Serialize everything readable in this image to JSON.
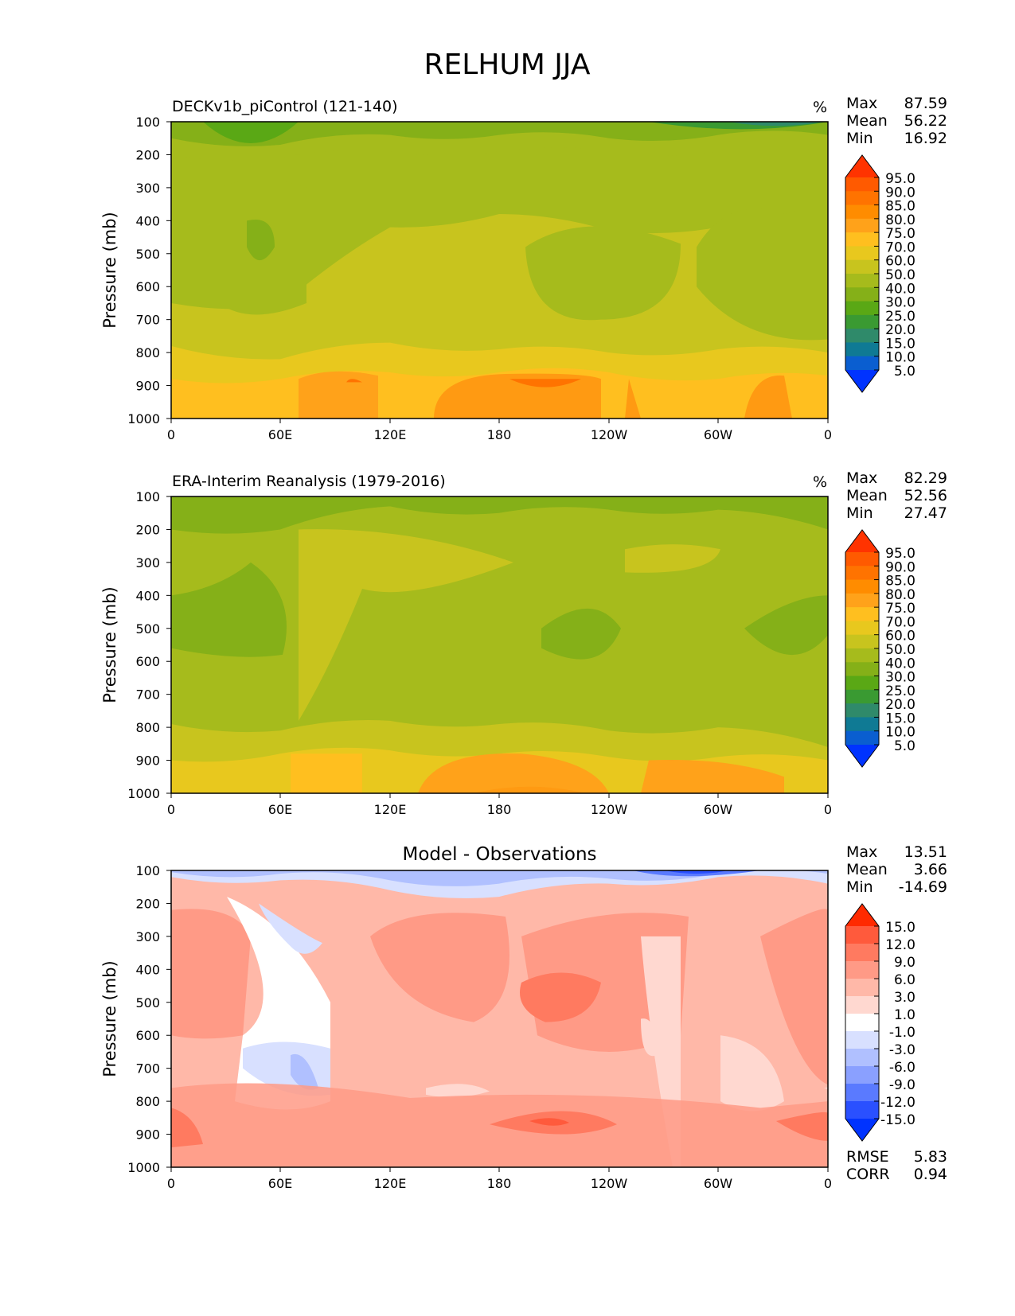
{
  "title": "RELHUM JJA",
  "common": {
    "ylabel": "Pressure (mb)",
    "y_ticks": [
      "100",
      "200",
      "300",
      "400",
      "500",
      "600",
      "700",
      "800",
      "900",
      "1000"
    ],
    "x_ticks": [
      "0",
      "60E",
      "120E",
      "180",
      "120W",
      "60W",
      "0"
    ]
  },
  "panels": [
    {
      "name": "model",
      "subtitle": "DECKv1b_piControl (121-140)",
      "units": "%",
      "stats": [
        {
          "label": "Max",
          "value": "87.59"
        },
        {
          "label": "Mean",
          "value": "56.22"
        },
        {
          "label": "Min",
          "value": "16.92"
        }
      ],
      "colorbar": {
        "labels": [
          "95.0",
          "90.0",
          "85.0",
          "80.0",
          "75.0",
          "70.0",
          "60.0",
          "50.0",
          "40.0",
          "30.0",
          "25.0",
          "20.0",
          "15.0",
          "10.0",
          "5.0"
        ],
        "colors": [
          "#ff3300",
          "#ff5a00",
          "#ff7300",
          "#ff8c00",
          "#ffa21a",
          "#ffbf1f",
          "#e8c81e",
          "#c8c41e",
          "#a6bb1c",
          "#85b018",
          "#5aa815",
          "#3a9a32",
          "#2f8a6a",
          "#0f7a94",
          "#0a5ed0",
          "#0033ff"
        ]
      },
      "bands": [
        {
          "color": "#ff9a12",
          "y": [
            1000,
            1000,
            1000,
            1000,
            1000,
            1000,
            1000
          ],
          "thick": 60
        },
        {
          "color": "#f5b81c",
          "y": [
            900,
            900,
            880,
            880,
            890,
            880,
            890
          ],
          "thick": 70
        },
        {
          "color": "#e8c81e",
          "y": [
            800,
            820,
            780,
            790,
            800,
            780,
            810
          ],
          "thick": 40
        },
        {
          "color": "#c8c41e",
          "y": [
            650,
            620,
            330,
            300,
            330,
            350,
            320
          ],
          "thick": 0
        },
        {
          "color": "#a6bb1c",
          "y": [
            700,
            700,
            460,
            480,
            420,
            420,
            420
          ],
          "thick": 0
        },
        {
          "color": "#5aa815",
          "y": [
            150,
            200,
            130,
            120,
            130,
            110,
            120
          ],
          "thick": 0
        }
      ],
      "chart_data": {
        "type": "heatmap",
        "x_ticks": [
          "0",
          "60E",
          "120E",
          "180",
          "120W",
          "60W",
          "0"
        ],
        "y_ticks": [
          100,
          200,
          300,
          400,
          500,
          600,
          700,
          800,
          900,
          1000
        ],
        "ylabel": "Pressure (mb)",
        "levels": [
          5,
          10,
          15,
          20,
          25,
          30,
          40,
          50,
          60,
          70,
          75,
          80,
          85,
          90,
          95
        ],
        "max": 87.59,
        "mean": 56.22,
        "min": 16.92
      }
    },
    {
      "name": "obs",
      "subtitle": "ERA-Interim Reanalysis (1979-2016)",
      "units": "%",
      "stats": [
        {
          "label": "Max",
          "value": "82.29"
        },
        {
          "label": "Mean",
          "value": "52.56"
        },
        {
          "label": "Min",
          "value": "27.47"
        }
      ],
      "colorbar": {
        "labels": [
          "95.0",
          "90.0",
          "85.0",
          "80.0",
          "75.0",
          "70.0",
          "60.0",
          "50.0",
          "40.0",
          "30.0",
          "25.0",
          "20.0",
          "15.0",
          "10.0",
          "5.0"
        ],
        "colors": [
          "#ff3300",
          "#ff5a00",
          "#ff7300",
          "#ff8c00",
          "#ffa21a",
          "#ffbf1f",
          "#e8c81e",
          "#c8c41e",
          "#a6bb1c",
          "#85b018",
          "#5aa815",
          "#3a9a32",
          "#2f8a6a",
          "#0f7a94",
          "#0a5ed0",
          "#0033ff"
        ]
      },
      "chart_data": {
        "type": "heatmap",
        "x_ticks": [
          "0",
          "60E",
          "120E",
          "180",
          "120W",
          "60W",
          "0"
        ],
        "y_ticks": [
          100,
          200,
          300,
          400,
          500,
          600,
          700,
          800,
          900,
          1000
        ],
        "ylabel": "Pressure (mb)",
        "levels": [
          5,
          10,
          15,
          20,
          25,
          30,
          40,
          50,
          60,
          70,
          75,
          80,
          85,
          90,
          95
        ],
        "max": 82.29,
        "mean": 52.56,
        "min": 27.47
      }
    },
    {
      "name": "diff",
      "subtitle": "Model - Observations",
      "units": "",
      "stats": [
        {
          "label": "Max",
          "value": "13.51"
        },
        {
          "label": "Mean",
          "value": "3.66"
        },
        {
          "label": "Min",
          "value": "-14.69"
        }
      ],
      "extra_stats": [
        {
          "label": "RMSE",
          "value": "5.83"
        },
        {
          "label": "CORR",
          "value": "0.94"
        }
      ],
      "colorbar": {
        "labels": [
          "15.0",
          "12.0",
          "9.0",
          "6.0",
          "3.0",
          "1.0",
          "-1.0",
          "-3.0",
          "-6.0",
          "-9.0",
          "-12.0",
          "-15.0"
        ],
        "colors": [
          "#ff2a00",
          "#ff5a3c",
          "#ff7a60",
          "#ff9a86",
          "#ffb8a8",
          "#ffd8d0",
          "#ffffff",
          "#d8e0ff",
          "#b0c0ff",
          "#8aa0ff",
          "#5a7aff",
          "#2a50ff",
          "#0033ff"
        ]
      },
      "chart_data": {
        "type": "heatmap",
        "x_ticks": [
          "0",
          "60E",
          "120E",
          "180",
          "120W",
          "60W",
          "0"
        ],
        "y_ticks": [
          100,
          200,
          300,
          400,
          500,
          600,
          700,
          800,
          900,
          1000
        ],
        "ylabel": "Pressure (mb)",
        "levels": [
          -15,
          -12,
          -9,
          -6,
          -3,
          -1,
          1,
          3,
          6,
          9,
          12,
          15
        ],
        "max": 13.51,
        "mean": 3.66,
        "min": -14.69,
        "rmse": 5.83,
        "corr": 0.94
      }
    }
  ]
}
